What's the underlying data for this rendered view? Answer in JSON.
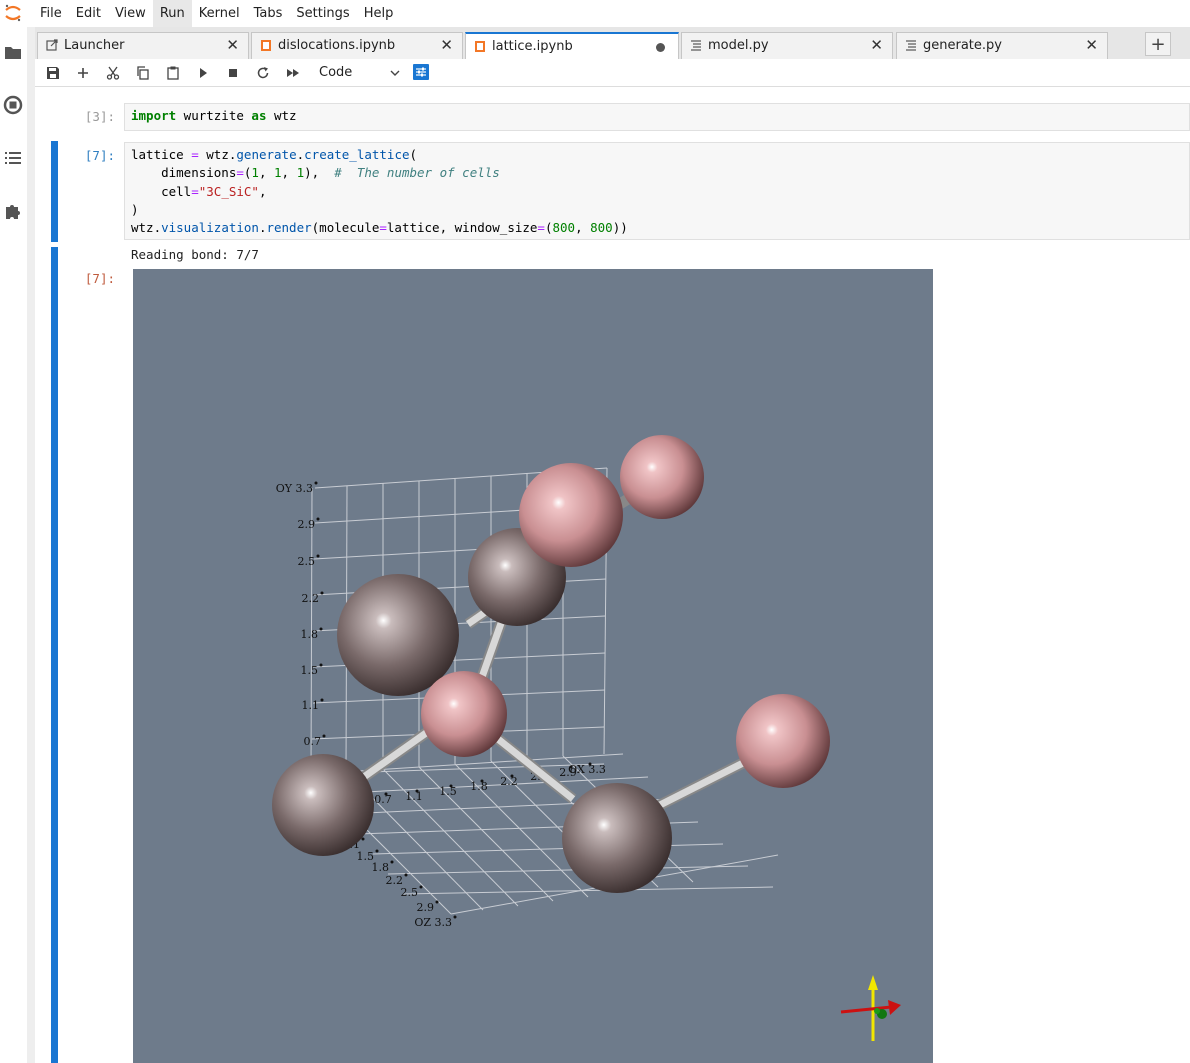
{
  "menubar": {
    "items": [
      "File",
      "Edit",
      "View",
      "Run",
      "Kernel",
      "Tabs",
      "Settings",
      "Help"
    ],
    "active": "Run"
  },
  "tabs": [
    {
      "label": "Launcher",
      "icon": "launcher-icon",
      "state": "close"
    },
    {
      "label": "dislocations.ipynb",
      "icon": "notebook-icon",
      "state": "close"
    },
    {
      "label": "lattice.ipynb",
      "icon": "notebook-icon",
      "state": "modified",
      "active": true
    },
    {
      "label": "model.py",
      "icon": "text-file-icon",
      "state": "close"
    },
    {
      "label": "generate.py",
      "icon": "text-file-icon",
      "state": "close"
    }
  ],
  "toolbar": {
    "cell_type": "Code",
    "buttons": [
      "save-icon",
      "add-cell-icon",
      "cut-icon",
      "copy-icon",
      "paste-icon",
      "run-icon",
      "stop-icon",
      "restart-icon",
      "fast-forward-icon"
    ]
  },
  "cells": {
    "c1": {
      "prompt": "[3]:"
    },
    "c2": {
      "prompt": "[7]:"
    },
    "out": {
      "prompt": "[7]:",
      "stream": "Reading bond: 7/7"
    }
  },
  "viewer": {
    "background": "#6e7b8b",
    "atom_colors": {
      "si": "#7a6a6a",
      "c": "#c98f92"
    },
    "axes": {
      "oy_ticks": [
        "OY 3.3",
        "2.9",
        "2.5",
        "2.2",
        "1.8",
        "1.5",
        "1.1",
        "0.7"
      ],
      "ox_ticks": [
        "0.7",
        "1.1",
        "1.5",
        "1.8",
        "2.2",
        "2.5",
        "2.9",
        "OX 3.3"
      ],
      "oz_ticks": [
        "0.7",
        "1.1",
        "1.5",
        "1.8",
        "2.2",
        "2.5",
        "2.9",
        "OZ 3.3"
      ]
    }
  }
}
